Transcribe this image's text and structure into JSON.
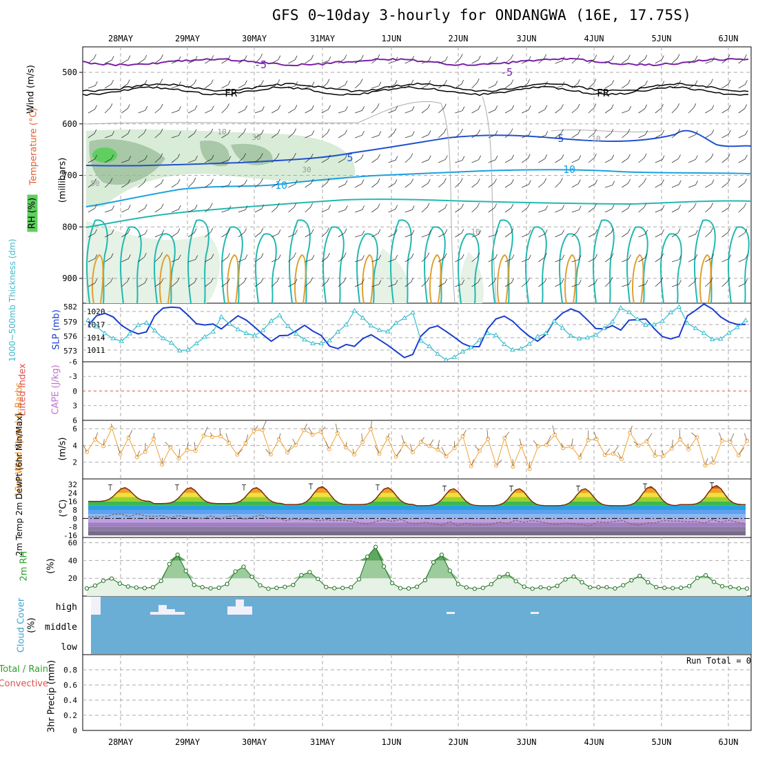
{
  "title": "GFS 0~10day 3-hourly for ONDANGWA (16E, 17.75S)",
  "dates": [
    "28MAY",
    "29MAY",
    "30MAY",
    "31MAY",
    "1JUN",
    "2JUN",
    "3JUN",
    "4JUN",
    "5JUN",
    "6JUN"
  ],
  "panels": {
    "upper": {
      "ylabel_wind": "Wind (m/s)",
      "ylabel_temp": "Temperature (°C)",
      "ylabel_rh": "RH (%)",
      "ylabel_mb": "(millibars)",
      "yticks": [
        "500",
        "600",
        "700",
        "800",
        "900"
      ],
      "contour_labels": [
        "-5",
        "-5",
        "FR",
        "FR",
        "5",
        "5",
        "10",
        "10",
        "10",
        "10",
        "30",
        "30",
        "50",
        "10"
      ]
    },
    "slp": {
      "ylabel_thick": "1000~500mb Thickness (dm)",
      "ylabel_slp": "SLP (mb)",
      "left_ticks": [
        "582",
        "579",
        "576",
        "573"
      ],
      "right_ticks": [
        "1020",
        "1017",
        "1014",
        "1011"
      ]
    },
    "li": {
      "ylabel_li": "Lifted Index",
      "ylabel_cape": "CAPE (J/kg)",
      "yticks": [
        "-6",
        "-3",
        "0",
        "3",
        "6"
      ]
    },
    "wind": {
      "ylabel": "10m Wind Speed & Barbs",
      "unit": "(m/s)",
      "yticks": [
        "6",
        "4",
        "2"
      ]
    },
    "temp": {
      "ylabel": "2m Temp 2m DewPt (6hr Min/Max)",
      "unit": "(°C)",
      "yticks": [
        "32",
        "24",
        "16",
        "8",
        "0",
        "-8",
        "-16"
      ]
    },
    "rh": {
      "ylabel": "2m RH",
      "unit": "(%)",
      "yticks": [
        "60",
        "40",
        "20"
      ]
    },
    "cloud": {
      "ylabel": "Cloud Cover",
      "unit": "(%)",
      "levels": [
        "high",
        "middle",
        "low"
      ]
    },
    "precip": {
      "ylabel_total": "Total / Rain",
      "ylabel_conv": "Convective",
      "ylabel": "3hr Precip (mm)",
      "yticks": [
        "0.8",
        "0.6",
        "0.4",
        "0.2",
        "0"
      ],
      "run_total": "Run Total = 0"
    }
  },
  "colors": {
    "slp": "#1a3ccf",
    "thickness": "#33bbcc",
    "wind": "#f0a030",
    "rh": "#2aa02a",
    "li": "#e05050",
    "cloud": "#6aaed6"
  },
  "chart_data": [
    {
      "type": "line",
      "title": "SLP / Thickness",
      "x": [
        "28MAY",
        "29MAY",
        "30MAY",
        "31MAY",
        "1JUN",
        "2JUN",
        "3JUN",
        "4JUN",
        "5JUN",
        "6JUN"
      ],
      "series": [
        {
          "name": "SLP (mb)",
          "values": [
            1017,
            1019,
            1016,
            1014,
            1012,
            1014,
            1016,
            1018,
            1016,
            1019
          ]
        },
        {
          "name": "1000~500mb Thickness (dm)",
          "values": [
            577,
            575,
            578,
            576,
            579,
            573,
            575,
            577,
            580,
            577
          ]
        }
      ]
    },
    {
      "type": "line",
      "title": "10m Wind Speed",
      "x": [
        "28MAY",
        "29MAY",
        "30MAY",
        "31MAY",
        "1JUN",
        "2JUN",
        "3JUN",
        "4JUN",
        "5JUN",
        "6JUN"
      ],
      "series": [
        {
          "name": "Speed (m/s)",
          "values": [
            4.5,
            3.5,
            4.0,
            5.0,
            4.5,
            3.5,
            3.0,
            3.5,
            4.0,
            3.5
          ]
        }
      ],
      "ylim": [
        0,
        7
      ]
    },
    {
      "type": "area",
      "title": "2m Temp",
      "x": [
        "28MAY",
        "29MAY",
        "30MAY",
        "31MAY",
        "1JUN",
        "2JUN",
        "3JUN",
        "4JUN",
        "5JUN",
        "6JUN"
      ],
      "series": [
        {
          "name": "Max",
          "values": [
            29,
            29,
            29,
            30,
            29,
            28,
            28,
            28,
            30,
            31
          ]
        },
        {
          "name": "Min",
          "values": [
            16,
            14,
            14,
            13,
            13,
            12,
            12,
            12,
            12,
            13
          ]
        },
        {
          "name": "DewPt",
          "values": [
            3,
            2,
            1,
            -2,
            -3,
            -5,
            -4,
            -5,
            -4,
            -3
          ]
        }
      ],
      "ylim": [
        -16,
        32
      ]
    },
    {
      "type": "area",
      "title": "2m RH",
      "x": [
        "28MAY",
        "29MAY",
        "30MAY",
        "31MAY",
        "1JUN",
        "2JUN",
        "3JUN",
        "4JUN",
        "5JUN",
        "6JUN"
      ],
      "series": [
        {
          "name": "RH (%)",
          "values": [
            20,
            47,
            33,
            28,
            57,
            48,
            25,
            22,
            22,
            24
          ]
        }
      ],
      "ylim": [
        0,
        60
      ]
    },
    {
      "type": "line",
      "title": "3hr Precip",
      "series": [
        {
          "name": "Precip (mm)",
          "values": [
            0,
            0,
            0,
            0,
            0,
            0,
            0,
            0,
            0,
            0
          ]
        }
      ],
      "ylim": [
        0,
        0.8
      ]
    }
  ]
}
